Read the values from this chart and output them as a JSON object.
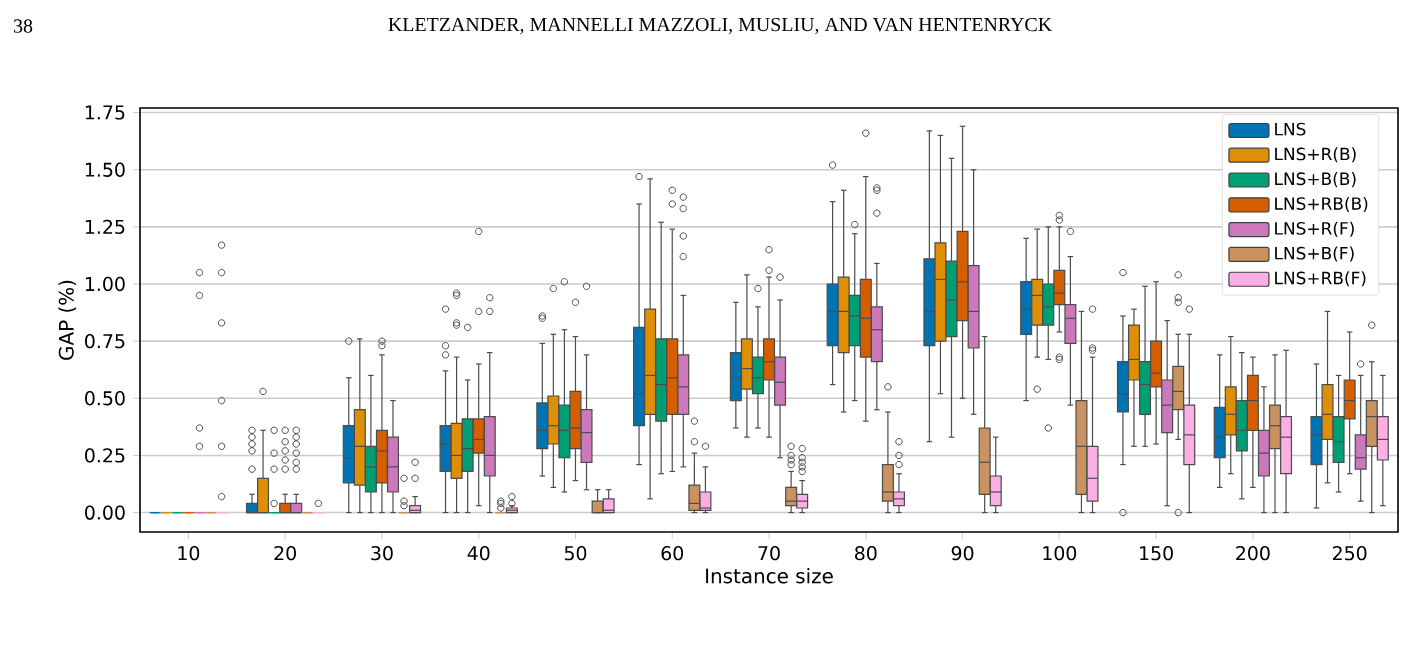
{
  "chart_data": {
    "type": "box",
    "xlabel": "Instance size",
    "ylabel": "GAP (%)",
    "annotations": [
      "38",
      "KLETZANDER, MANNELLI MAZZOLI, MUSLIU, AND VAN HENTENRYCK"
    ],
    "categories": [
      "10",
      "20",
      "30",
      "40",
      "50",
      "60",
      "70",
      "80",
      "90",
      "100",
      "150",
      "200",
      "250"
    ],
    "ylim": [
      -0.085,
      1.77
    ],
    "yticks": [
      {
        "value": 0,
        "label": "0.00"
      },
      {
        "value": 0.25,
        "label": "0.25"
      },
      {
        "value": 0.5,
        "label": "0.50"
      },
      {
        "value": 0.75,
        "label": "0.75"
      },
      {
        "value": 1,
        "label": "1.00"
      },
      {
        "value": 1.25,
        "label": "1.25"
      },
      {
        "value": 1.5,
        "label": "1.50"
      },
      {
        "value": 1.75,
        "label": "1.75"
      }
    ],
    "grid": "y",
    "legend": "top right",
    "series": [
      {
        "name": "LNS",
        "color": "#0173b2",
        "boxes": [
          {
            "low": 0,
            "q1": 0,
            "median": 0,
            "q3": 0,
            "high": 0
          },
          {
            "low": 0,
            "q1": 0,
            "median": 0,
            "q3": 0.04,
            "high": 0.08,
            "outliers": [
              0.19,
              0.27,
              0.3,
              0.33,
              0.36
            ]
          },
          {
            "low": 0,
            "q1": 0.13,
            "median": 0.24,
            "q3": 0.38,
            "high": 0.59,
            "outliers": [
              0.75
            ]
          },
          {
            "low": 0,
            "q1": 0.18,
            "median": 0.3,
            "q3": 0.38,
            "high": 0.62,
            "outliers": [
              0.69,
              0.73,
              0.89
            ]
          },
          {
            "low": 0.16,
            "q1": 0.28,
            "median": 0.36,
            "q3": 0.48,
            "high": 0.74,
            "outliers": [
              0.85,
              0.86
            ]
          },
          {
            "low": 0.21,
            "q1": 0.38,
            "median": 0.52,
            "q3": 0.81,
            "high": 1.35,
            "outliers": [
              1.47
            ]
          },
          {
            "low": 0.37,
            "q1": 0.49,
            "median": 0.59,
            "q3": 0.7,
            "high": 0.92
          },
          {
            "low": 0.56,
            "q1": 0.73,
            "median": 0.88,
            "q3": 1.0,
            "high": 1.36,
            "outliers": [
              1.52
            ]
          },
          {
            "low": 0.31,
            "q1": 0.73,
            "median": 0.88,
            "q3": 1.11,
            "high": 1.67
          },
          {
            "low": 0.49,
            "q1": 0.78,
            "median": 0.89,
            "q3": 1.01,
            "high": 1.2
          },
          {
            "low": 0.21,
            "q1": 0.44,
            "median": 0.52,
            "q3": 0.66,
            "high": 0.86,
            "outliers": [
              0,
              1.05
            ]
          },
          {
            "low": 0.11,
            "q1": 0.24,
            "median": 0.33,
            "q3": 0.46,
            "high": 0.69
          },
          {
            "low": 0.02,
            "q1": 0.21,
            "median": 0.34,
            "q3": 0.42,
            "high": 0.65
          }
        ]
      },
      {
        "name": "LNS+R(B)",
        "color": "#de8f05",
        "boxes": [
          {
            "low": 0,
            "q1": 0,
            "median": 0,
            "q3": 0,
            "high": 0
          },
          {
            "low": 0,
            "q1": 0,
            "median": 0,
            "q3": 0.15,
            "high": 0.36,
            "outliers": [
              0.53
            ]
          },
          {
            "low": 0,
            "q1": 0.12,
            "median": 0.29,
            "q3": 0.45,
            "high": 0.76
          },
          {
            "low": 0,
            "q1": 0.15,
            "median": 0.25,
            "q3": 0.39,
            "high": 0.68,
            "outliers": [
              0.82,
              0.83,
              0.95,
              0.96
            ]
          },
          {
            "low": 0.11,
            "q1": 0.3,
            "median": 0.38,
            "q3": 0.51,
            "high": 0.78,
            "outliers": [
              0.98
            ]
          },
          {
            "low": 0.06,
            "q1": 0.43,
            "median": 0.6,
            "q3": 0.89,
            "high": 1.46
          },
          {
            "low": 0.33,
            "q1": 0.54,
            "median": 0.63,
            "q3": 0.76,
            "high": 1.04
          },
          {
            "low": 0.44,
            "q1": 0.7,
            "median": 0.88,
            "q3": 1.03,
            "high": 1.41
          },
          {
            "low": 0.52,
            "q1": 0.75,
            "median": 1.02,
            "q3": 1.18,
            "high": 1.65
          },
          {
            "low": 0.68,
            "q1": 0.82,
            "median": 0.95,
            "q3": 1.02,
            "high": 1.24,
            "outliers": [
              0.54
            ]
          },
          {
            "low": 0.29,
            "q1": 0.58,
            "median": 0.67,
            "q3": 0.82,
            "high": 0.89
          },
          {
            "low": 0.17,
            "q1": 0.34,
            "median": 0.43,
            "q3": 0.55,
            "high": 0.77
          },
          {
            "low": 0.13,
            "q1": 0.32,
            "median": 0.43,
            "q3": 0.56,
            "high": 0.88
          }
        ]
      },
      {
        "name": "LNS+B(B)",
        "color": "#029e73",
        "boxes": [
          {
            "low": 0,
            "q1": 0,
            "median": 0,
            "q3": 0,
            "high": 0
          },
          {
            "low": 0,
            "q1": 0,
            "median": 0,
            "q3": 0,
            "high": 0,
            "outliers": [
              0.04,
              0.19,
              0.26,
              0.36
            ]
          },
          {
            "low": 0,
            "q1": 0.09,
            "median": 0.2,
            "q3": 0.29,
            "high": 0.6
          },
          {
            "low": 0,
            "q1": 0.18,
            "median": 0.28,
            "q3": 0.41,
            "high": 0.58,
            "outliers": [
              0.81
            ]
          },
          {
            "low": 0.09,
            "q1": 0.24,
            "median": 0.36,
            "q3": 0.47,
            "high": 0.8,
            "outliers": [
              1.01
            ]
          },
          {
            "low": 0.17,
            "q1": 0.4,
            "median": 0.56,
            "q3": 0.76,
            "high": 1.27
          },
          {
            "low": 0.37,
            "q1": 0.52,
            "median": 0.59,
            "q3": 0.68,
            "high": 0.9,
            "outliers": [
              0.98
            ]
          },
          {
            "low": 0.49,
            "q1": 0.73,
            "median": 0.86,
            "q3": 0.95,
            "high": 1.22,
            "outliers": [
              1.26
            ]
          },
          {
            "low": 0.33,
            "q1": 0.77,
            "median": 0.93,
            "q3": 1.1,
            "high": 1.55
          },
          {
            "low": 0.67,
            "q1": 0.82,
            "median": 0.9,
            "q3": 1.0,
            "high": 1.25,
            "outliers": [
              0.37
            ]
          },
          {
            "low": 0.29,
            "q1": 0.43,
            "median": 0.56,
            "q3": 0.66,
            "high": 0.99
          },
          {
            "low": 0.06,
            "q1": 0.27,
            "median": 0.36,
            "q3": 0.49,
            "high": 0.7
          },
          {
            "low": 0.09,
            "q1": 0.22,
            "median": 0.31,
            "q3": 0.42,
            "high": 0.6
          }
        ]
      },
      {
        "name": "LNS+RB(B)",
        "color": "#d55e00",
        "boxes": [
          {
            "low": 0,
            "q1": 0,
            "median": 0,
            "q3": 0,
            "high": 0
          },
          {
            "low": 0,
            "q1": 0,
            "median": 0,
            "q3": 0.04,
            "high": 0.08,
            "outliers": [
              0.19,
              0.23,
              0.27,
              0.31,
              0.36
            ]
          },
          {
            "low": 0,
            "q1": 0.13,
            "median": 0.27,
            "q3": 0.36,
            "high": 0.69,
            "outliers": [
              0.73,
              0.75
            ]
          },
          {
            "low": 0.03,
            "q1": 0.26,
            "median": 0.32,
            "q3": 0.41,
            "high": 0.65,
            "outliers": [
              0.88,
              1.23
            ]
          },
          {
            "low": 0.14,
            "q1": 0.28,
            "median": 0.37,
            "q3": 0.53,
            "high": 0.77,
            "outliers": [
              0.92
            ]
          },
          {
            "low": 0.18,
            "q1": 0.43,
            "median": 0.59,
            "q3": 0.76,
            "high": 1.24,
            "outliers": [
              1.35,
              1.41
            ]
          },
          {
            "low": 0.33,
            "q1": 0.58,
            "median": 0.66,
            "q3": 0.76,
            "high": 1.03,
            "outliers": [
              1.06,
              1.15
            ]
          },
          {
            "low": 0.4,
            "q1": 0.68,
            "median": 0.85,
            "q3": 1.02,
            "high": 1.47,
            "outliers": [
              1.66
            ]
          },
          {
            "low": 0.5,
            "q1": 0.84,
            "median": 1.01,
            "q3": 1.23,
            "high": 1.69
          },
          {
            "low": 0.79,
            "q1": 0.91,
            "median": 0.96,
            "q3": 1.06,
            "high": 1.25,
            "outliers": [
              0.67,
              0.68,
              1.28,
              1.3
            ]
          },
          {
            "low": 0.3,
            "q1": 0.55,
            "median": 0.61,
            "q3": 0.75,
            "high": 1.01
          },
          {
            "low": 0.11,
            "q1": 0.36,
            "median": 0.49,
            "q3": 0.6,
            "high": 0.68
          },
          {
            "low": 0.17,
            "q1": 0.41,
            "median": 0.49,
            "q3": 0.58,
            "high": 0.79
          }
        ]
      },
      {
        "name": "LNS+R(F)",
        "color": "#cc78bc",
        "boxes": [
          {
            "low": 0,
            "q1": 0,
            "median": 0,
            "q3": 0,
            "high": 0,
            "outliers": [
              0.29,
              0.37,
              0.95,
              1.05
            ]
          },
          {
            "low": 0,
            "q1": 0,
            "median": 0,
            "q3": 0.04,
            "high": 0.08,
            "outliers": [
              0.19,
              0.22,
              0.26,
              0.3,
              0.33,
              0.36
            ]
          },
          {
            "low": 0,
            "q1": 0.09,
            "median": 0.2,
            "q3": 0.33,
            "high": 0.49
          },
          {
            "low": 0,
            "q1": 0.16,
            "median": 0.25,
            "q3": 0.42,
            "high": 0.7,
            "outliers": [
              0.88,
              0.94
            ]
          },
          {
            "low": 0.1,
            "q1": 0.22,
            "median": 0.35,
            "q3": 0.45,
            "high": 0.69,
            "outliers": [
              0.99
            ]
          },
          {
            "low": 0.2,
            "q1": 0.43,
            "median": 0.55,
            "q3": 0.69,
            "high": 0.95,
            "outliers": [
              1.12,
              1.21,
              1.33,
              1.38
            ]
          },
          {
            "low": 0.24,
            "q1": 0.47,
            "median": 0.57,
            "q3": 0.68,
            "high": 0.93,
            "outliers": [
              1.03
            ]
          },
          {
            "low": 0.45,
            "q1": 0.66,
            "median": 0.8,
            "q3": 0.9,
            "high": 1.09,
            "outliers": [
              1.31,
              1.41,
              1.42
            ]
          },
          {
            "low": 0.43,
            "q1": 0.72,
            "median": 0.88,
            "q3": 1.08,
            "high": 1.5
          },
          {
            "low": 0.47,
            "q1": 0.74,
            "median": 0.85,
            "q3": 0.91,
            "high": 1.12,
            "outliers": [
              1.23
            ]
          },
          {
            "low": 0.03,
            "q1": 0.35,
            "median": 0.47,
            "q3": 0.58,
            "high": 0.84
          },
          {
            "low": 0,
            "q1": 0.16,
            "median": 0.26,
            "q3": 0.36,
            "high": 0.55
          },
          {
            "low": 0.05,
            "q1": 0.19,
            "median": 0.24,
            "q3": 0.34,
            "high": 0.6,
            "outliers": [
              0.65
            ]
          }
        ]
      },
      {
        "name": "LNS+B(F)",
        "color": "#ca9161",
        "boxes": [
          {
            "low": 0,
            "q1": 0,
            "median": 0,
            "q3": 0,
            "high": 0
          },
          {
            "low": 0,
            "q1": 0,
            "median": 0,
            "q3": 0,
            "high": 0
          },
          {
            "low": 0,
            "q1": 0,
            "median": 0,
            "q3": 0,
            "high": 0,
            "outliers": [
              0.03,
              0.05,
              0.15
            ]
          },
          {
            "low": 0,
            "q1": 0,
            "median": 0,
            "q3": 0,
            "high": 0,
            "outliers": [
              0.02,
              0.04,
              0.05
            ]
          },
          {
            "low": 0,
            "q1": 0,
            "median": 0,
            "q3": 0.05,
            "high": 0.1
          },
          {
            "low": 0,
            "q1": 0.01,
            "median": 0.04,
            "q3": 0.12,
            "high": 0.26,
            "outliers": [
              0.31,
              0.4
            ]
          },
          {
            "low": 0,
            "q1": 0.03,
            "median": 0.05,
            "q3": 0.11,
            "high": 0.18,
            "outliers": [
              0.21,
              0.23,
              0.25,
              0.29
            ]
          },
          {
            "low": 0,
            "q1": 0.05,
            "median": 0.09,
            "q3": 0.21,
            "high": 0.44,
            "outliers": [
              0.55
            ]
          },
          {
            "low": 0,
            "q1": 0.08,
            "median": 0.22,
            "q3": 0.37,
            "high": 0.77
          },
          {
            "low": 0,
            "q1": 0.08,
            "median": 0.29,
            "q3": 0.49,
            "high": 0.88
          },
          {
            "low": 0.32,
            "q1": 0.45,
            "median": 0.53,
            "q3": 0.64,
            "high": 0.78,
            "outliers": [
              0,
              0.92,
              0.94,
              1.04
            ]
          },
          {
            "low": 0,
            "q1": 0.28,
            "median": 0.38,
            "q3": 0.47,
            "high": 0.69
          },
          {
            "low": 0,
            "q1": 0.29,
            "median": 0.42,
            "q3": 0.49,
            "high": 0.66,
            "outliers": [
              0.82
            ]
          }
        ]
      },
      {
        "name": "LNS+RB(F)",
        "color": "#fbafe4",
        "boxes": [
          {
            "low": 0,
            "q1": 0,
            "median": 0,
            "q3": 0,
            "high": 0,
            "outliers": [
              0.07,
              0.29,
              0.49,
              0.83,
              1.05,
              1.17
            ]
          },
          {
            "low": 0,
            "q1": 0,
            "median": 0,
            "q3": 0,
            "high": 0,
            "outliers": [
              0.04
            ]
          },
          {
            "low": 0,
            "q1": 0,
            "median": 0.01,
            "q3": 0.03,
            "high": 0.07,
            "outliers": [
              0.15,
              0.22
            ]
          },
          {
            "low": 0,
            "q1": 0,
            "median": 0.01,
            "q3": 0.02,
            "high": 0.03,
            "outliers": [
              0.04,
              0.07
            ]
          },
          {
            "low": 0,
            "q1": 0,
            "median": 0.01,
            "q3": 0.06,
            "high": 0.1
          },
          {
            "low": 0,
            "q1": 0.01,
            "median": 0.02,
            "q3": 0.09,
            "high": 0.2,
            "outliers": [
              0.29
            ]
          },
          {
            "low": 0,
            "q1": 0.02,
            "median": 0.05,
            "q3": 0.08,
            "high": 0.14,
            "outliers": [
              0.18,
              0.2,
              0.22,
              0.24,
              0.28
            ]
          },
          {
            "low": 0,
            "q1": 0.03,
            "median": 0.06,
            "q3": 0.09,
            "high": 0.17,
            "outliers": [
              0.21,
              0.25,
              0.31
            ]
          },
          {
            "low": 0,
            "q1": 0.03,
            "median": 0.09,
            "q3": 0.16,
            "high": 0.33
          },
          {
            "low": 0,
            "q1": 0.05,
            "median": 0.15,
            "q3": 0.29,
            "high": 0.68,
            "outliers": [
              0.71,
              0.72,
              0.89
            ]
          },
          {
            "low": 0,
            "q1": 0.21,
            "median": 0.34,
            "q3": 0.47,
            "high": 0.78,
            "outliers": [
              0.89
            ]
          },
          {
            "low": 0,
            "q1": 0.17,
            "median": 0.33,
            "q3": 0.42,
            "high": 0.71
          },
          {
            "low": 0.03,
            "q1": 0.23,
            "median": 0.32,
            "q3": 0.42,
            "high": 0.6
          }
        ]
      }
    ]
  }
}
